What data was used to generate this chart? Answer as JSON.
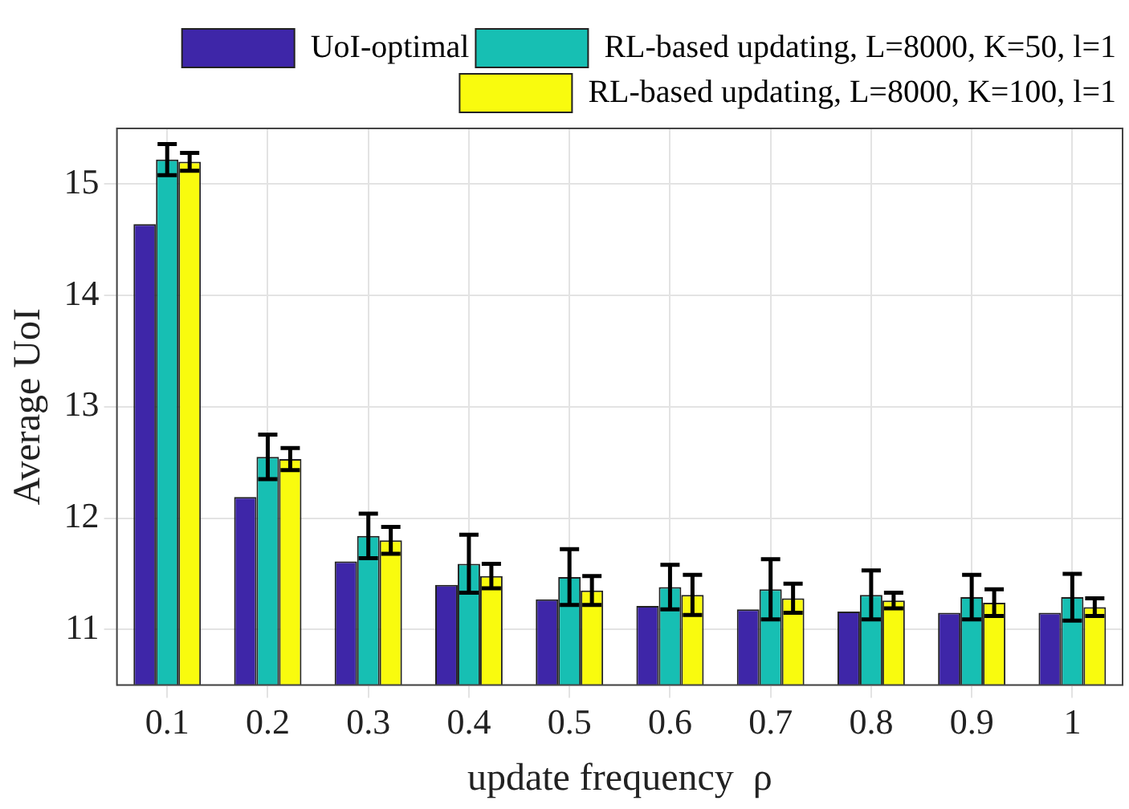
{
  "chart_data": {
    "type": "bar",
    "xlabel": "update frequency  ρ",
    "ylabel": "Average UoI",
    "categories": [
      "0.1",
      "0.2",
      "0.3",
      "0.4",
      "0.5",
      "0.6",
      "0.7",
      "0.8",
      "0.9",
      "1"
    ],
    "series": [
      {
        "name": "UoI-optimal",
        "color": "#3e26a8",
        "values": [
          14.64,
          12.19,
          11.61,
          11.4,
          11.27,
          11.21,
          11.18,
          11.16,
          11.15,
          11.15
        ]
      },
      {
        "name": "RL-based updating, L=8000, K=50, l=1",
        "color": "#17bfb3",
        "values": [
          15.22,
          12.55,
          11.84,
          11.59,
          11.47,
          11.38,
          11.36,
          11.31,
          11.29,
          11.29
        ],
        "errors": [
          0.14,
          0.2,
          0.2,
          0.26,
          0.25,
          0.2,
          0.27,
          0.22,
          0.2,
          0.21
        ]
      },
      {
        "name": "RL-based updating, L=8000, K=100, l=1",
        "color": "#f9fb0e",
        "values": [
          15.2,
          12.53,
          11.8,
          11.48,
          11.35,
          11.31,
          11.28,
          11.26,
          11.24,
          11.2
        ],
        "errors": [
          0.08,
          0.1,
          0.12,
          0.11,
          0.13,
          0.18,
          0.13,
          0.07,
          0.12,
          0.08
        ]
      }
    ],
    "ylim": [
      10.5,
      15.5
    ],
    "yticks": [
      11,
      12,
      13,
      14,
      15
    ],
    "grid": true,
    "legend": "top right"
  }
}
